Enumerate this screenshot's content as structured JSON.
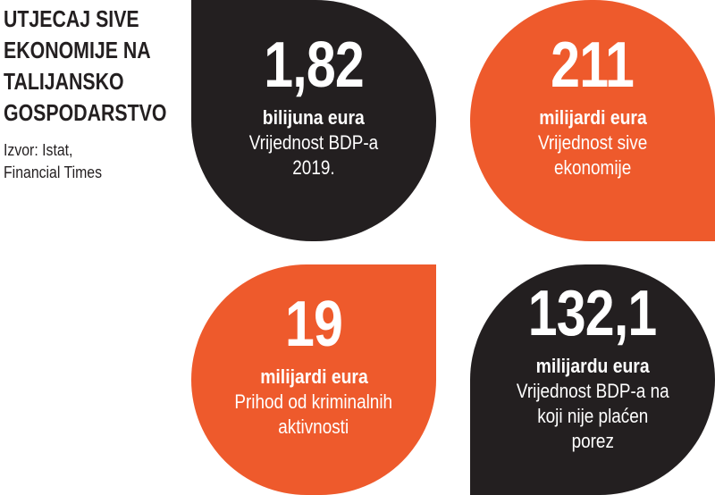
{
  "title_lines": [
    "UTJECAJ SIVE",
    "EKONOMIJE NA",
    "TALIJANSKO",
    "GOSPODARSTVO"
  ],
  "source_lines": [
    "Izvor: Istat,",
    "Financial Times"
  ],
  "colors": {
    "dark": "#231f20",
    "orange": "#ee5a2c",
    "text_on_shape": "#ffffff"
  },
  "stats": [
    {
      "value": "1,82",
      "unit": "bilijuna eura",
      "desc_lines": [
        "Vrijednost BDP-a",
        "2019."
      ]
    },
    {
      "value": "211",
      "unit": "milijardi eura",
      "desc_lines": [
        "Vrijednost sive",
        "ekonomije"
      ]
    },
    {
      "value": "19",
      "unit": "milijardi eura",
      "desc_lines": [
        "Prihod od kriminalnih",
        "aktivnosti"
      ]
    },
    {
      "value": "132,1",
      "unit": "milijardu eura",
      "desc_lines": [
        "Vrijednost BDP-a na",
        "koji nije plaćen",
        "porez"
      ]
    }
  ]
}
